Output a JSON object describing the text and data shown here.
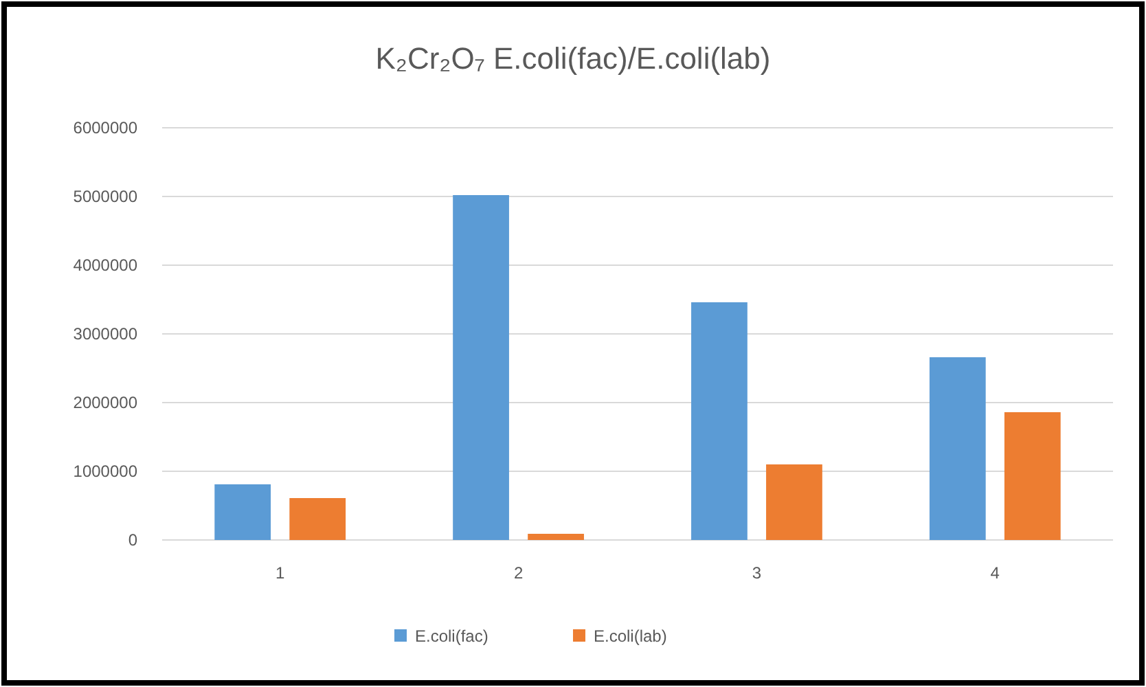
{
  "chart_data": {
    "type": "bar",
    "title": "K₂Cr₂O₇ E.coli(fac)/E.coli(lab)",
    "categories": [
      "1",
      "2",
      "3",
      "4"
    ],
    "series": [
      {
        "name": "E.coli(fac)",
        "color": "#5b9bd5",
        "values": [
          810000,
          5020000,
          3460000,
          2660000
        ]
      },
      {
        "name": "E.coli(lab)",
        "color": "#ed7d31",
        "values": [
          610000,
          90000,
          1100000,
          1860000
        ]
      }
    ],
    "ylim": [
      0,
      6000000
    ],
    "yticks": [
      {
        "value": 0,
        "label": "0"
      },
      {
        "value": 1000000,
        "label": "1000000"
      },
      {
        "value": 2000000,
        "label": "2000000"
      },
      {
        "value": 3000000,
        "label": "3000000"
      },
      {
        "value": 4000000,
        "label": "4000000"
      },
      {
        "value": 5000000,
        "label": "5000000"
      },
      {
        "value": 6000000,
        "label": "6000000"
      }
    ],
    "grid": "y",
    "legend": "bottom"
  }
}
